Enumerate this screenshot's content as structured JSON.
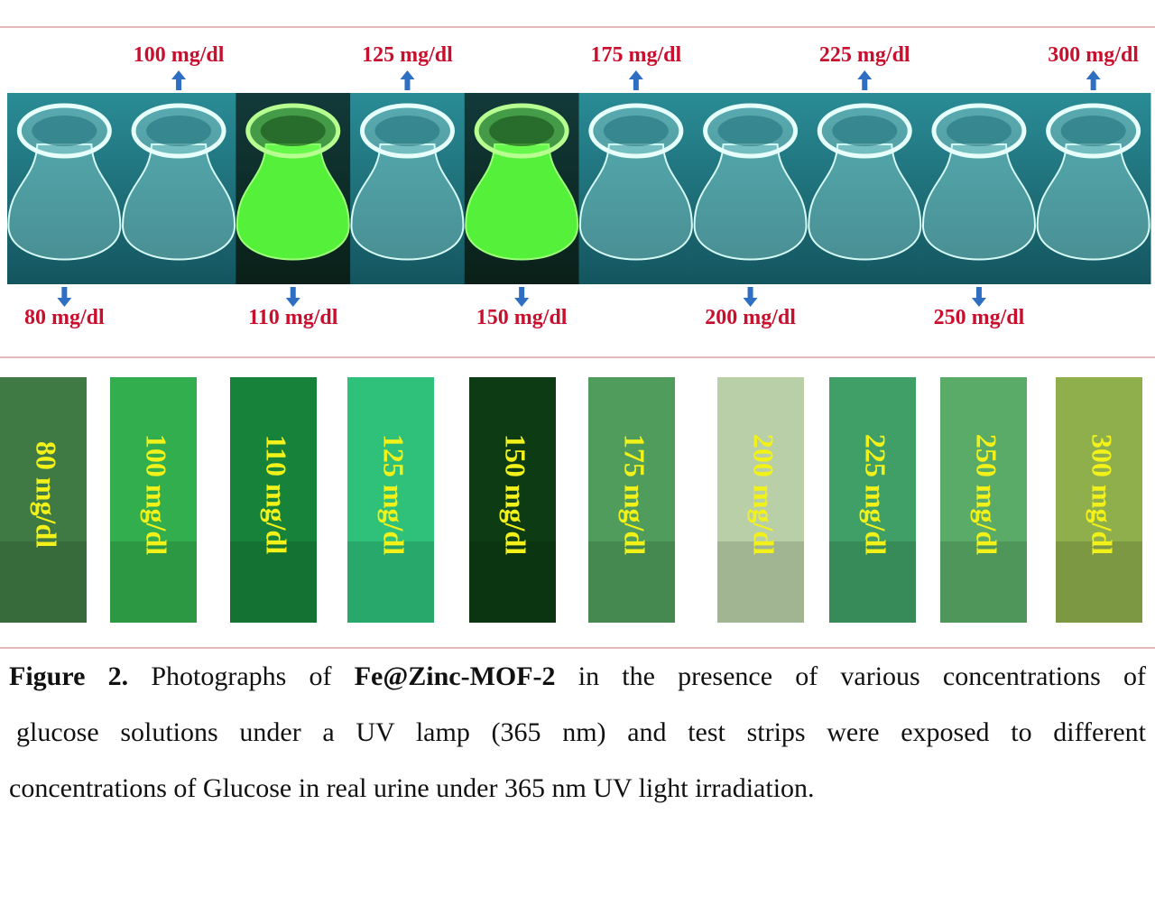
{
  "flasks": [
    "80 mg/dl",
    "100 mg/dl",
    "110 mg/dl",
    "125 mg/dl",
    "150 mg/dl",
    "175 mg/dl",
    "200 mg/dl",
    "225 mg/dl",
    "250 mg/dl",
    "300 mg/dl"
  ],
  "strips": [
    "80 mg/dl",
    "100 mg/dl",
    "110 mg/dl",
    "125 mg/dl",
    "150 mg/dl",
    "175 mg/dl",
    "200 mg/dl",
    "225 mg/dl",
    "250 mg/dl",
    "300 mg/dl"
  ],
  "caption": {
    "label": "Figure 2.",
    "text_1": "Photographs of",
    "compound": "Fe@Zinc-MOF-2",
    "text_2": "in the presence of various concentrations of",
    "line_2": "glucose solutions under a UV lamp (365 nm) and test strips were exposed to different",
    "line_3": "concentrations of Glucose in real urine under 365 nm UV light irradiation."
  }
}
